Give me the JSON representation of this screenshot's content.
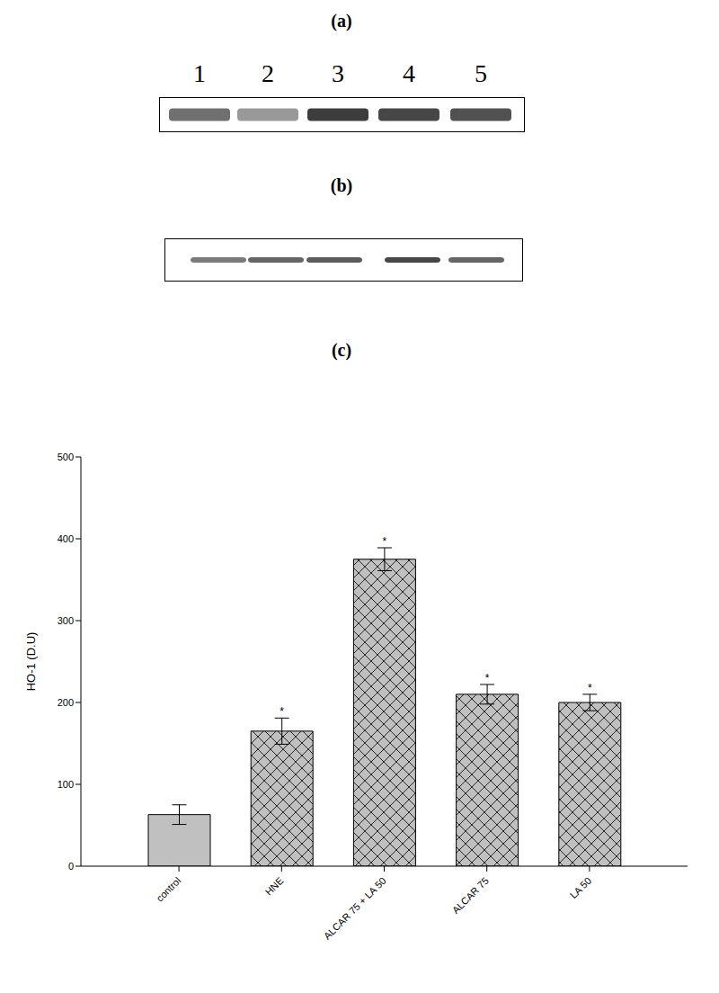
{
  "panel_labels": [
    "(a)",
    "(b)",
    "(c)"
  ],
  "lanes": [
    "1",
    "2",
    "3",
    "4",
    "5"
  ],
  "chart_data": {
    "type": "bar",
    "categories": [
      "control",
      "HNE",
      "ALCAR 75 + LA 50",
      "ALCAR 75",
      "LA 50"
    ],
    "values": [
      63,
      165,
      375,
      210,
      200
    ],
    "errors": [
      12,
      16,
      14,
      12,
      10
    ],
    "annotations": [
      null,
      "*",
      "*",
      "*",
      "*"
    ],
    "colors": [
      "#c0c0c0",
      "#c0c0c0",
      "#c0c0c0",
      "#c0c0c0",
      "#c0c0c0"
    ],
    "y_label": "HO-1 (D.U)",
    "ylim": [
      0,
      500
    ],
    "yticks": [
      0,
      100,
      200,
      300,
      400,
      500
    ],
    "grid": false
  }
}
